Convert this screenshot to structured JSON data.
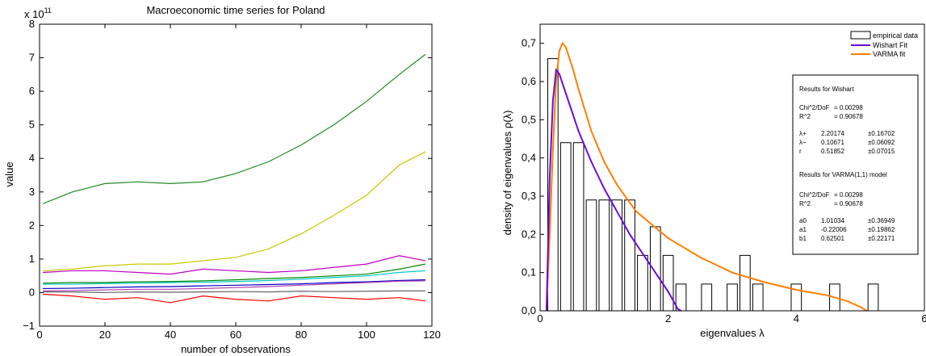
{
  "chart_data": [
    {
      "type": "line",
      "title": "Macroeconomic time series for Poland",
      "xlabel": "number of observations",
      "ylabel": "value",
      "exponent_label": "x 10",
      "exponent_power": "11",
      "xlim": [
        0,
        120
      ],
      "ylim": [
        -1,
        8
      ],
      "x_ticks": [
        "0",
        "20",
        "40",
        "60",
        "80",
        "100",
        "120"
      ],
      "y_ticks": [
        "−1",
        "0",
        "1",
        "2",
        "3",
        "4",
        "5",
        "6",
        "7",
        "8"
      ],
      "x": [
        1,
        10,
        20,
        30,
        40,
        50,
        60,
        70,
        80,
        90,
        100,
        110,
        118
      ],
      "series": [
        {
          "color": "#1f8a1f",
          "values": [
            2.65,
            3.0,
            3.25,
            3.3,
            3.25,
            3.3,
            3.55,
            3.9,
            4.4,
            5.0,
            5.7,
            6.5,
            7.1
          ]
        },
        {
          "color": "#c8c800",
          "values": [
            0.65,
            0.7,
            0.8,
            0.85,
            0.85,
            0.95,
            1.05,
            1.3,
            1.75,
            2.3,
            2.9,
            3.8,
            4.2
          ]
        },
        {
          "color": "#c000c0",
          "values": [
            0.6,
            0.65,
            0.65,
            0.6,
            0.55,
            0.7,
            0.65,
            0.6,
            0.65,
            0.75,
            0.85,
            1.1,
            0.95
          ]
        },
        {
          "color": "#008800",
          "values": [
            0.28,
            0.3,
            0.3,
            0.32,
            0.33,
            0.35,
            0.38,
            0.42,
            0.45,
            0.5,
            0.55,
            0.7,
            0.85
          ]
        },
        {
          "color": "#00c8c8",
          "values": [
            0.25,
            0.25,
            0.27,
            0.28,
            0.3,
            0.31,
            0.33,
            0.36,
            0.4,
            0.45,
            0.5,
            0.6,
            0.65
          ]
        },
        {
          "color": "#0000cc",
          "values": [
            0.12,
            0.13,
            0.15,
            0.17,
            0.18,
            0.2,
            0.22,
            0.24,
            0.26,
            0.3,
            0.32,
            0.36,
            0.38
          ]
        },
        {
          "color": "#b040b0",
          "values": [
            0.05,
            0.06,
            0.08,
            0.1,
            0.1,
            0.12,
            0.15,
            0.18,
            0.22,
            0.26,
            0.3,
            0.34,
            0.35
          ]
        },
        {
          "color": "#666666",
          "values": [
            0.02,
            0.02,
            0.0,
            0.02,
            0.01,
            0.02,
            0.03,
            0.02,
            0.04,
            0.03,
            0.04,
            0.05,
            0.05
          ]
        },
        {
          "color": "#ff0000",
          "values": [
            -0.05,
            -0.1,
            -0.2,
            -0.15,
            -0.3,
            -0.1,
            -0.2,
            -0.25,
            -0.1,
            -0.15,
            -0.2,
            -0.15,
            -0.25
          ]
        }
      ]
    },
    {
      "type": "bar",
      "xlabel": "eigenvalues λ",
      "ylabel": "density of eigenvalues ρ(λ)",
      "xlim": [
        0,
        6
      ],
      "ylim": [
        0,
        0.75
      ],
      "x_ticks": [
        "0",
        "2",
        "4",
        "6"
      ],
      "y_ticks": [
        "0,0",
        "0,1",
        "0,2",
        "0,3",
        "0,4",
        "0,5",
        "0,6",
        "0,7"
      ],
      "legend": [
        {
          "label": "empirical data",
          "kind": "box",
          "color": "#000000"
        },
        {
          "label": "Wishart Fit",
          "kind": "line",
          "color": "#6a0dd6"
        },
        {
          "label": "VARMA fit",
          "kind": "line",
          "color": "#ff7f00"
        }
      ],
      "bin_width": 0.16,
      "bars": [
        {
          "x": 0.2,
          "y": 0.66
        },
        {
          "x": 0.4,
          "y": 0.44
        },
        {
          "x": 0.6,
          "y": 0.44
        },
        {
          "x": 0.8,
          "y": 0.29
        },
        {
          "x": 1.0,
          "y": 0.29
        },
        {
          "x": 1.2,
          "y": 0.29
        },
        {
          "x": 1.4,
          "y": 0.29
        },
        {
          "x": 1.6,
          "y": 0.145
        },
        {
          "x": 1.8,
          "y": 0.22
        },
        {
          "x": 2.0,
          "y": 0.145
        },
        {
          "x": 2.2,
          "y": 0.07
        },
        {
          "x": 2.6,
          "y": 0.07
        },
        {
          "x": 3.0,
          "y": 0.07
        },
        {
          "x": 3.2,
          "y": 0.145
        },
        {
          "x": 3.4,
          "y": 0.07
        },
        {
          "x": 4.0,
          "y": 0.07
        },
        {
          "x": 4.6,
          "y": 0.07
        },
        {
          "x": 5.2,
          "y": 0.07
        }
      ],
      "wishart_curve": {
        "x": [
          0.1,
          0.15,
          0.2,
          0.25,
          0.3,
          0.4,
          0.5,
          0.6,
          0.8,
          1.0,
          1.2,
          1.4,
          1.6,
          1.8,
          2.0,
          2.1,
          2.15,
          2.2
        ],
        "y": [
          0.0,
          0.35,
          0.55,
          0.63,
          0.62,
          0.57,
          0.52,
          0.47,
          0.39,
          0.32,
          0.26,
          0.2,
          0.15,
          0.1,
          0.05,
          0.02,
          0.005,
          0.0
        ]
      },
      "varma_curve": {
        "x": [
          0.1,
          0.15,
          0.2,
          0.25,
          0.3,
          0.35,
          0.4,
          0.5,
          0.6,
          0.8,
          1.0,
          1.2,
          1.5,
          2.0,
          2.5,
          3.0,
          3.5,
          4.0,
          4.5,
          4.8,
          5.0,
          5.1
        ],
        "y": [
          0.0,
          0.2,
          0.42,
          0.6,
          0.68,
          0.7,
          0.69,
          0.64,
          0.58,
          0.47,
          0.39,
          0.33,
          0.26,
          0.19,
          0.14,
          0.1,
          0.075,
          0.055,
          0.04,
          0.025,
          0.01,
          0.0
        ]
      },
      "results_box": {
        "wishart_heading": "Results for Wishart",
        "wishart_rows": [
          {
            "name": "Chi^2/DoF",
            "value": "= 0.00298",
            "err": ""
          },
          {
            "name": "R^2",
            "value": "= 0.90678",
            "err": ""
          },
          {
            "name": "λ+",
            "value": "2.20174",
            "err": "±0.16702"
          },
          {
            "name": "λ−",
            "value": "0.10671",
            "err": "±0.06092"
          },
          {
            "name": "r",
            "value": "0.51852",
            "err": "±0.07015"
          }
        ],
        "varma_heading": "Results for VARMA(1,1) model",
        "varma_rows": [
          {
            "name": "Chi^2/DoF",
            "value": "= 0.00298",
            "err": ""
          },
          {
            "name": "R^2",
            "value": "= 0.90678",
            "err": ""
          },
          {
            "name": "a0",
            "value": "1.01034",
            "err": "±0.36949"
          },
          {
            "name": "a1",
            "value": "-0.22006",
            "err": "±0.19862"
          },
          {
            "name": "b1",
            "value": "0.62501",
            "err": "±0.22171"
          }
        ]
      }
    }
  ]
}
